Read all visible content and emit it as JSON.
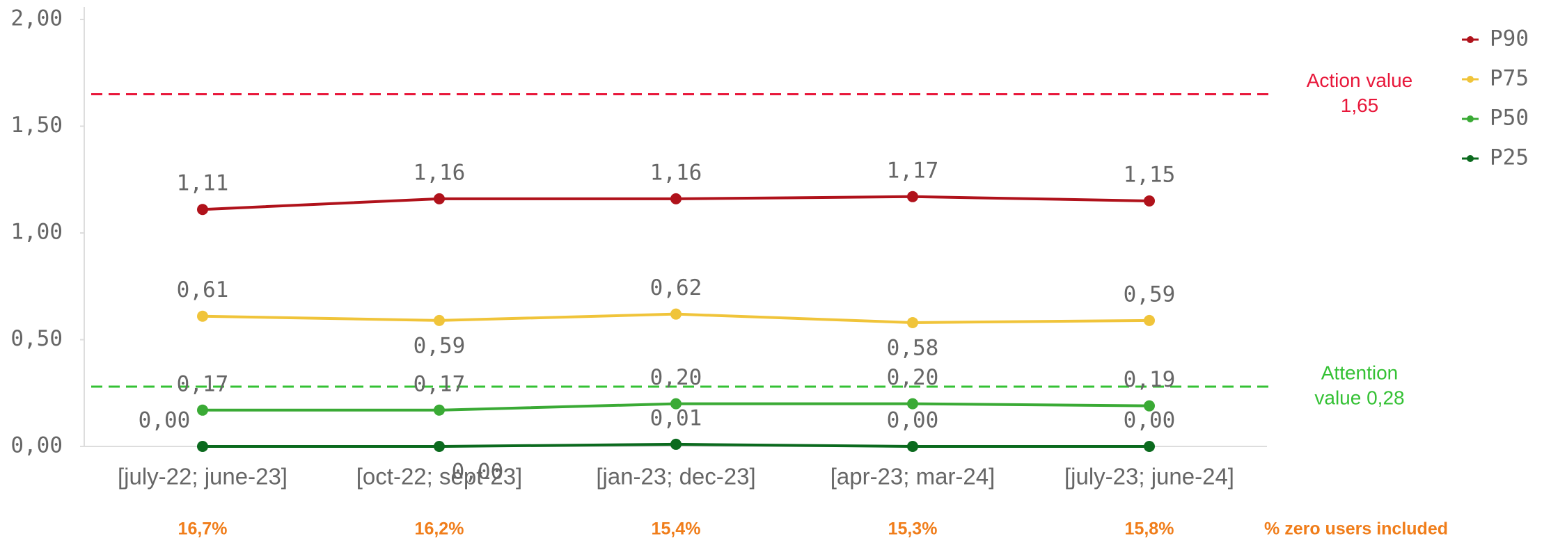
{
  "chart_data": {
    "type": "line",
    "categories": [
      "[july-22; june-23]",
      "[oct-22; sept-23]",
      "[jan-23; dec-23]",
      "[apr-23; mar-24]",
      "[july-23; june-24]"
    ],
    "series": [
      {
        "name": "P90",
        "color": "#b0121b",
        "values": [
          1.11,
          1.16,
          1.16,
          1.17,
          1.15
        ],
        "value_labels": [
          "1,11",
          "1,16",
          "1,16",
          "1,17",
          "1,15"
        ]
      },
      {
        "name": "P75",
        "color": "#f0c43a",
        "values": [
          0.61,
          0.59,
          0.62,
          0.58,
          0.59
        ],
        "value_labels": [
          "0,61",
          "0,59",
          "0,62",
          "0,58",
          "0,59"
        ]
      },
      {
        "name": "P50",
        "color": "#3aaa35",
        "values": [
          0.17,
          0.17,
          0.2,
          0.2,
          0.19
        ],
        "value_labels": [
          "0,17",
          "0,17",
          "0,20",
          "0,20",
          "0,19"
        ]
      },
      {
        "name": "P25",
        "color": "#0b6a1e",
        "values": [
          0.0,
          0.0,
          0.01,
          0.0,
          0.0
        ],
        "value_labels": [
          "0,00",
          "0,00",
          "0,01",
          "0,00",
          "0,00"
        ]
      }
    ],
    "ylim": [
      0,
      2
    ],
    "yticks": [
      {
        "value": 0,
        "label": "0,00"
      },
      {
        "value": 0.5,
        "label": "0,50"
      },
      {
        "value": 1,
        "label": "1,00"
      },
      {
        "value": 1.5,
        "label": "1,50"
      },
      {
        "value": 2,
        "label": "2,00"
      }
    ],
    "reference_lines": [
      {
        "value": 1.65,
        "color": "#e8173a",
        "text": [
          "Action value",
          "1,65"
        ]
      },
      {
        "value": 0.28,
        "color": "#34c134",
        "text": [
          "Attention",
          "value 0,28"
        ]
      }
    ],
    "footer_values": [
      "16,7%",
      "16,2%",
      "15,4%",
      "15,3%",
      "15,8%"
    ],
    "footer_label": "% zero users included",
    "legend": "top-right"
  }
}
